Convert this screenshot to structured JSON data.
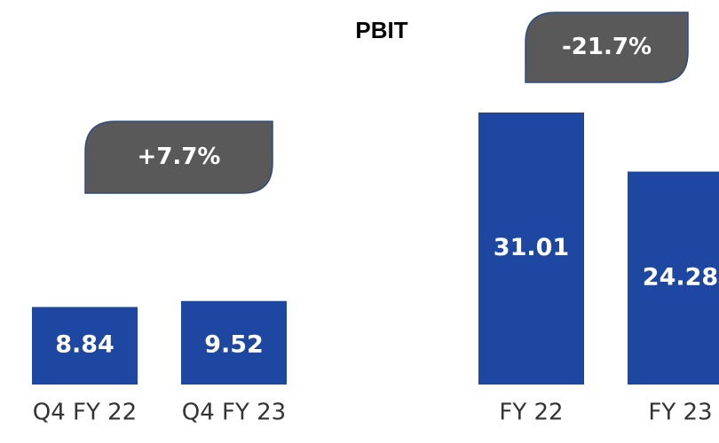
{
  "chart_data": {
    "type": "bar",
    "title": "PBIT",
    "categories": [
      "Q4 FY 22",
      "Q4 FY 23",
      "FY 22",
      "FY 23"
    ],
    "values": [
      8.84,
      9.52,
      31.01,
      24.28
    ],
    "color": "#1d47a0",
    "annotations": [
      "+7.7%",
      "-21.7%"
    ]
  }
}
